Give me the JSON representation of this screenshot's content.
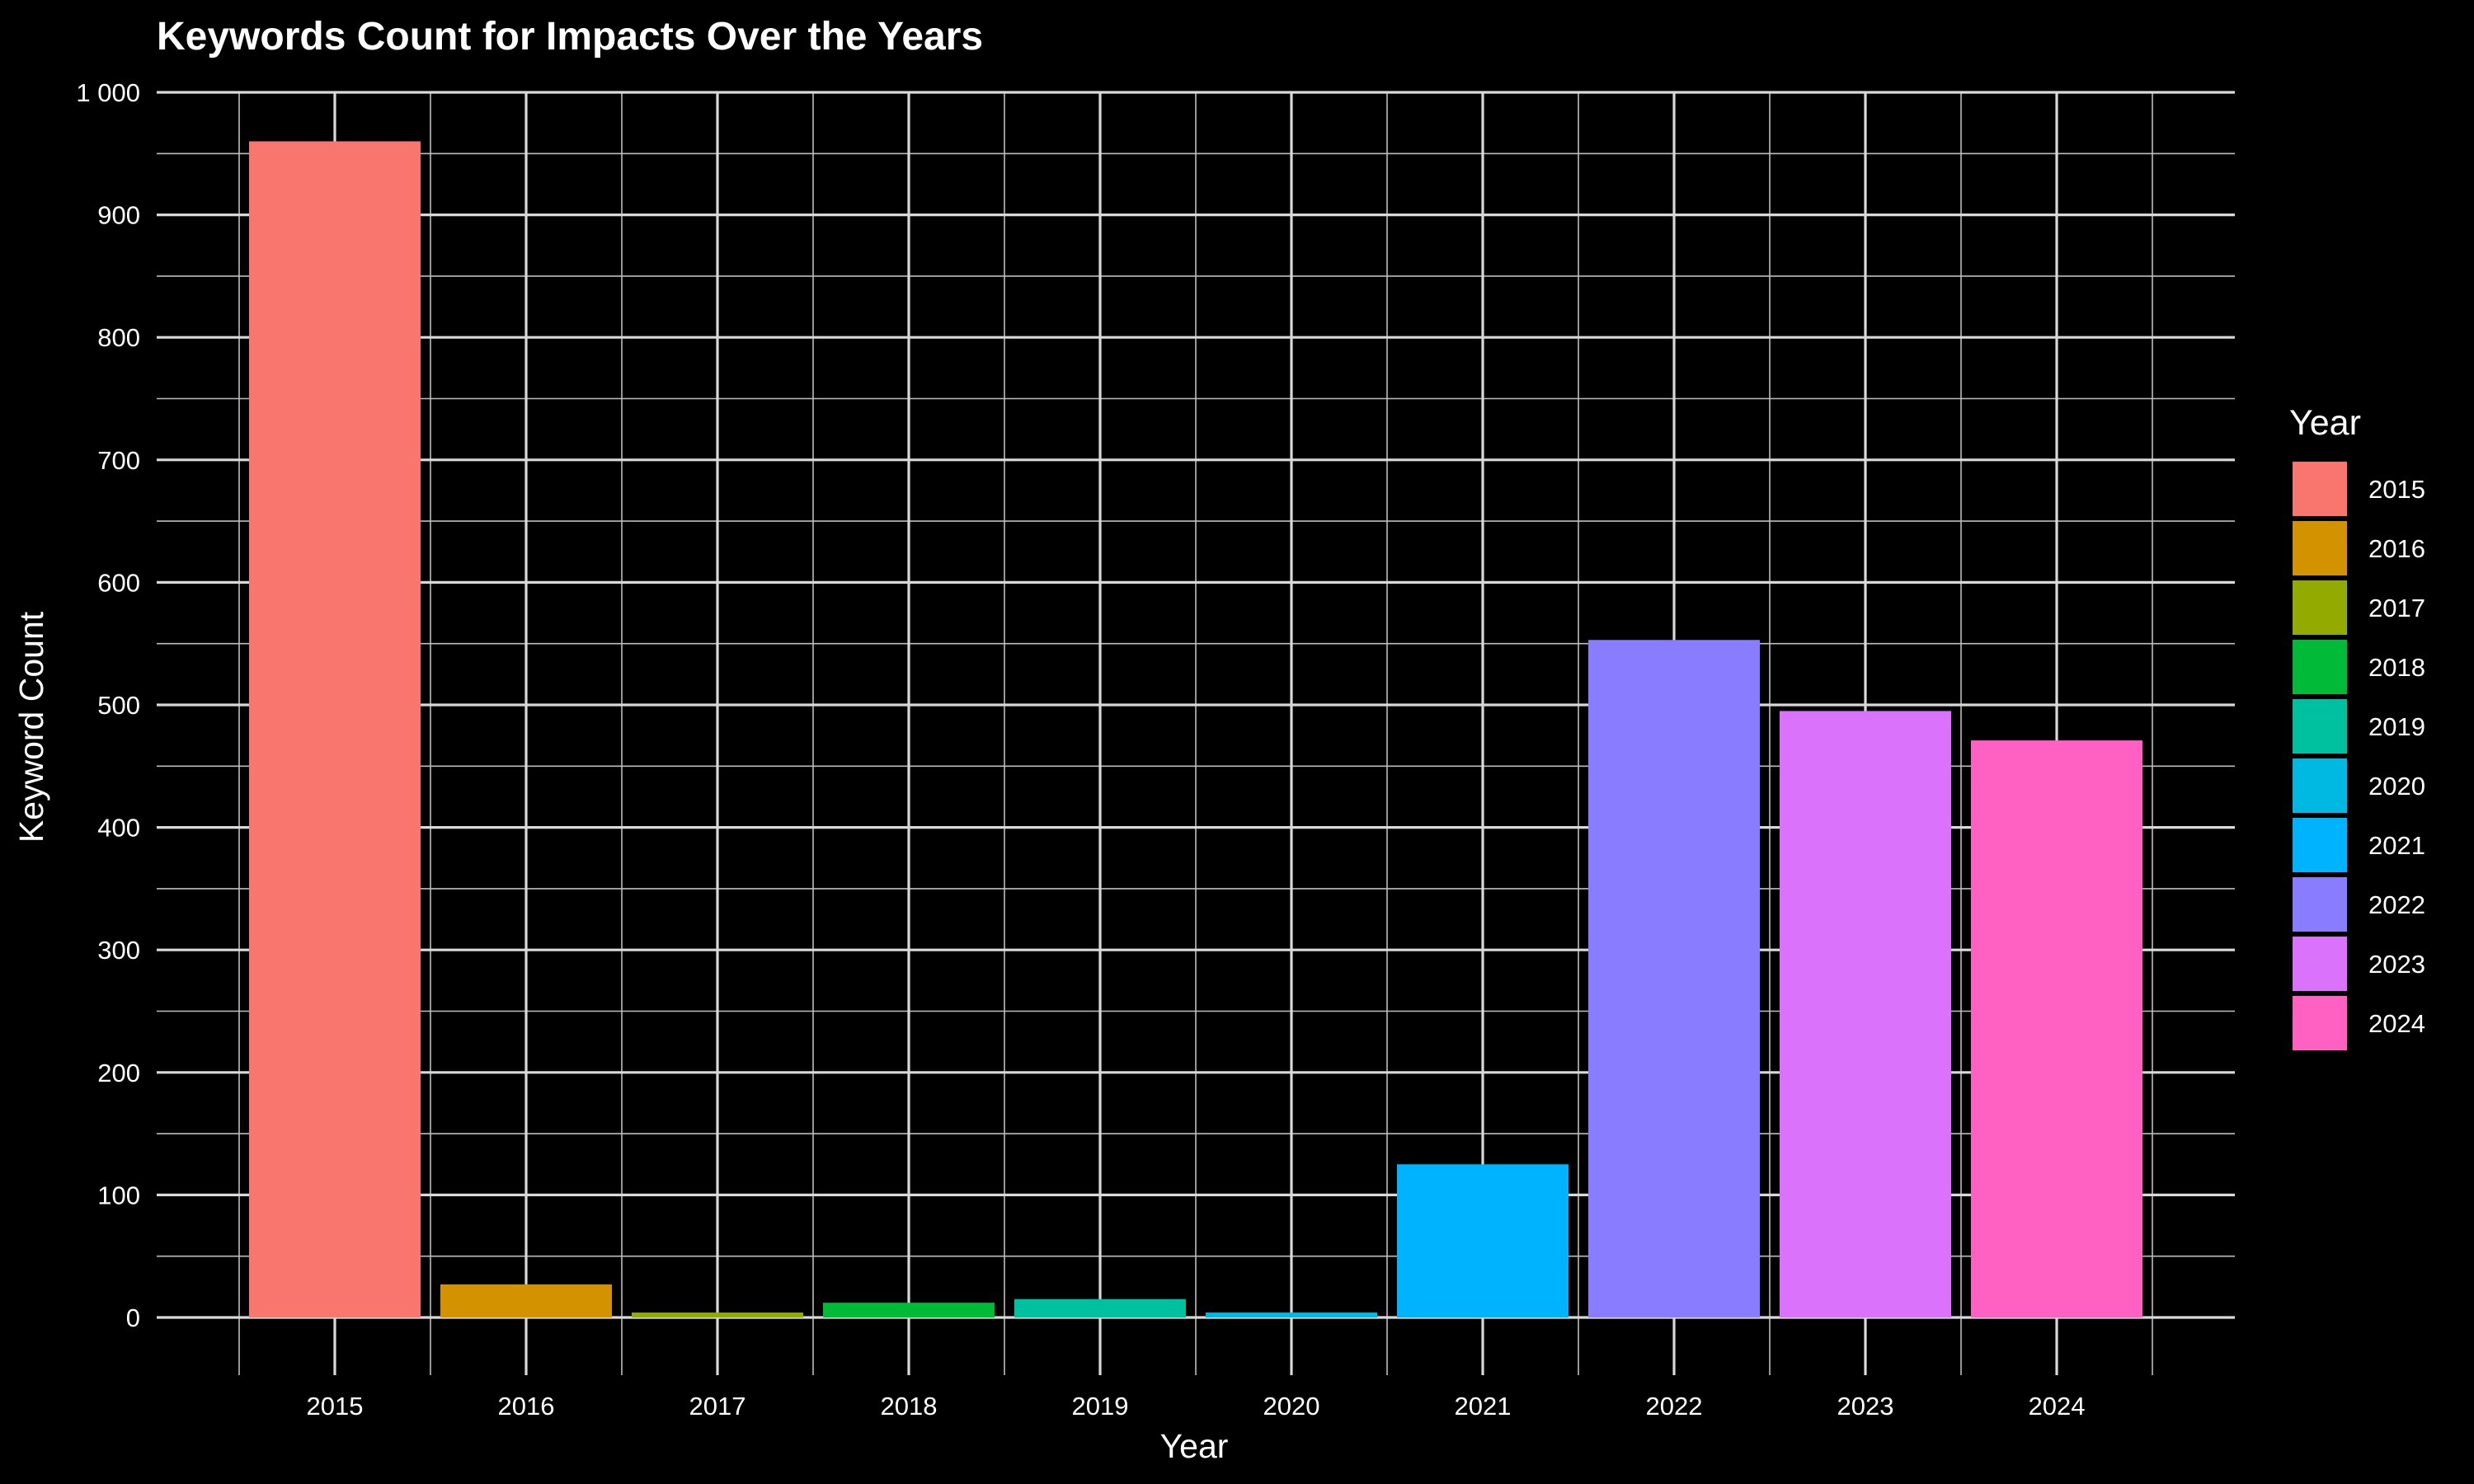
{
  "chart_data": {
    "type": "bar",
    "title": "Keywords Count for Impacts Over the Years",
    "xlabel": "Year",
    "ylabel": "Keyword Count",
    "categories": [
      "2015",
      "2016",
      "2017",
      "2018",
      "2019",
      "2020",
      "2021",
      "2022",
      "2023",
      "2024"
    ],
    "values": [
      960,
      27,
      4,
      12,
      15,
      4,
      125,
      553,
      495,
      471
    ],
    "colors": [
      "#F8766D",
      "#D39200",
      "#93AA00",
      "#00BA38",
      "#00C19F",
      "#00B9E3",
      "#00B3FF",
      "#8A7CFF",
      "#DB72FB",
      "#FF61C3"
    ],
    "ylim": [
      0,
      1000
    ],
    "yticks": [
      0,
      100,
      200,
      300,
      400,
      500,
      600,
      700,
      800,
      900,
      1000
    ],
    "ytick_labels": [
      "0",
      "100",
      "200",
      "300",
      "400",
      "500",
      "600",
      "700",
      "800",
      "900",
      "1 000"
    ],
    "grid": true,
    "legend": {
      "title": "Year",
      "position": "right",
      "entries": [
        "2015",
        "2016",
        "2017",
        "2018",
        "2019",
        "2020",
        "2021",
        "2022",
        "2023",
        "2024"
      ]
    }
  }
}
